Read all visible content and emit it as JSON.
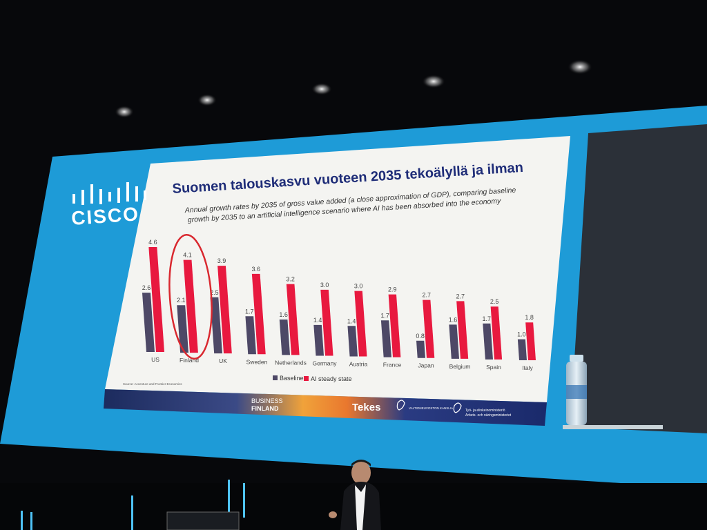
{
  "slide": {
    "brand": "CISCO",
    "title": "Suomen talouskasvu vuoteen 2035 tekoälyllä ja ilman",
    "subtitle_line1": "Annual growth rates by 2035 of gross value added (a close approximation of GDP), comparing baseline",
    "subtitle_line2": "growth by 2035 to an artificial intelligence scenario where AI has been absorbed into the economy",
    "source": "Source: Accenture and Frontier Economics",
    "footer": {
      "business_line1": "BUSINESS",
      "business_line2": "FINLAND",
      "tekes": "Tekes",
      "ministry1": "VALTIONEUVOSTON KANSLIA",
      "ministry2_line1": "Työ- ja elinkeinoministeriö",
      "ministry2_line2": "Arbets- och näringsministeriet"
    }
  },
  "colors": {
    "baseline": "#4d4866",
    "ai": "#e8193f",
    "title": "#1f2d78",
    "screen_frame": "#1e9bd7",
    "highlight_circle": "#d9282f"
  },
  "chart_data": {
    "type": "bar",
    "categories": [
      "US",
      "Finland",
      "UK",
      "Sweden",
      "Netherlands",
      "Germany",
      "Austria",
      "France",
      "Japan",
      "Belgium",
      "Spain",
      "Italy"
    ],
    "series": [
      {
        "name": "Baseline",
        "values": [
          2.6,
          2.1,
          2.5,
          1.7,
          1.6,
          1.4,
          1.4,
          1.7,
          0.8,
          1.6,
          1.7,
          1.0
        ]
      },
      {
        "name": "AI steady state",
        "values": [
          4.6,
          4.1,
          3.9,
          3.6,
          3.2,
          3.0,
          3.0,
          2.9,
          2.7,
          2.7,
          2.5,
          1.8
        ]
      }
    ],
    "ylim": [
      0,
      4.6
    ],
    "highlighted_category": "Finland",
    "legend": "bottom-center",
    "grid": false
  }
}
